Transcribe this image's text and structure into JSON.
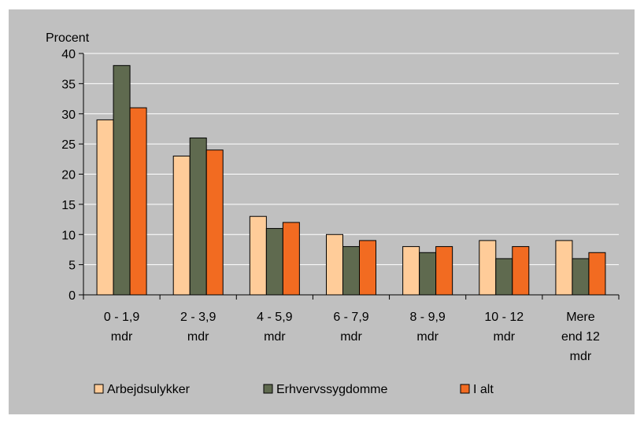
{
  "chart_data": {
    "type": "bar",
    "ylabel": "Procent",
    "ylim": [
      0,
      40
    ],
    "yticks": [
      0,
      5,
      10,
      15,
      20,
      25,
      30,
      35,
      40
    ],
    "grid": true,
    "legend_position": "bottom",
    "categories": [
      [
        "0 - 1,9",
        "mdr"
      ],
      [
        "2 - 3,9",
        "mdr"
      ],
      [
        "4 - 5,9",
        "mdr"
      ],
      [
        "6 - 7,9",
        "mdr"
      ],
      [
        "8 - 9,9",
        "mdr"
      ],
      [
        "10 - 12",
        "mdr"
      ],
      [
        "Mere",
        "end 12",
        "mdr"
      ]
    ],
    "series": [
      {
        "name": "Arbejdsulykker",
        "color": "#FFCC99",
        "values": [
          29,
          23,
          13,
          10,
          8,
          9,
          9
        ]
      },
      {
        "name": "Erhvervssygdomme",
        "color": "#5F6A4F",
        "values": [
          38,
          26,
          11,
          8,
          7,
          6,
          6
        ]
      },
      {
        "name": "I alt",
        "color": "#F26B21",
        "values": [
          31,
          24,
          12,
          9,
          8,
          8,
          7
        ]
      }
    ],
    "colors": {
      "frame_background": "#C0C0C0",
      "plot_background": "#C0C0C0",
      "gridline": "#FFFFFF",
      "bar_outline": "#000000"
    }
  }
}
